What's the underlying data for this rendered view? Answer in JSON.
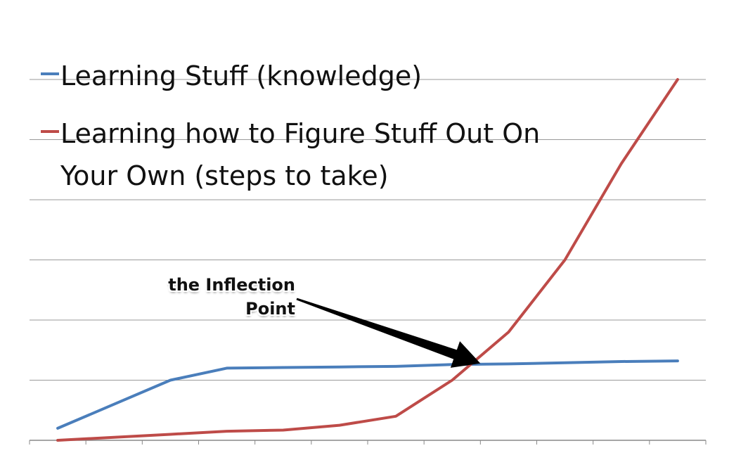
{
  "chart_data": {
    "type": "line",
    "title": "",
    "xlabel": "",
    "ylabel": "",
    "x": [
      1,
      2,
      3,
      4,
      5,
      6,
      7,
      8,
      9,
      10,
      11,
      12
    ],
    "ylim": [
      0,
      6
    ],
    "grid": true,
    "legend_position": "top-left",
    "series": [
      {
        "name": "Learning Stuff (knowledge)",
        "color": "#4a7ebb",
        "values": [
          0.2,
          0.6,
          1.0,
          1.2,
          1.21,
          1.22,
          1.23,
          1.26,
          1.27,
          1.29,
          1.31,
          1.32
        ]
      },
      {
        "name": "Learning how to Figure Stuff Out On Your Own (steps to take)",
        "color": "#be4b48",
        "values": [
          0.0,
          0.05,
          0.1,
          0.15,
          0.17,
          0.25,
          0.4,
          1.0,
          1.8,
          3.0,
          4.6,
          6.0
        ]
      }
    ],
    "annotations": [
      {
        "text": "the Inflection Point",
        "target_x": 8.5,
        "target_y": 1.28
      }
    ]
  }
}
